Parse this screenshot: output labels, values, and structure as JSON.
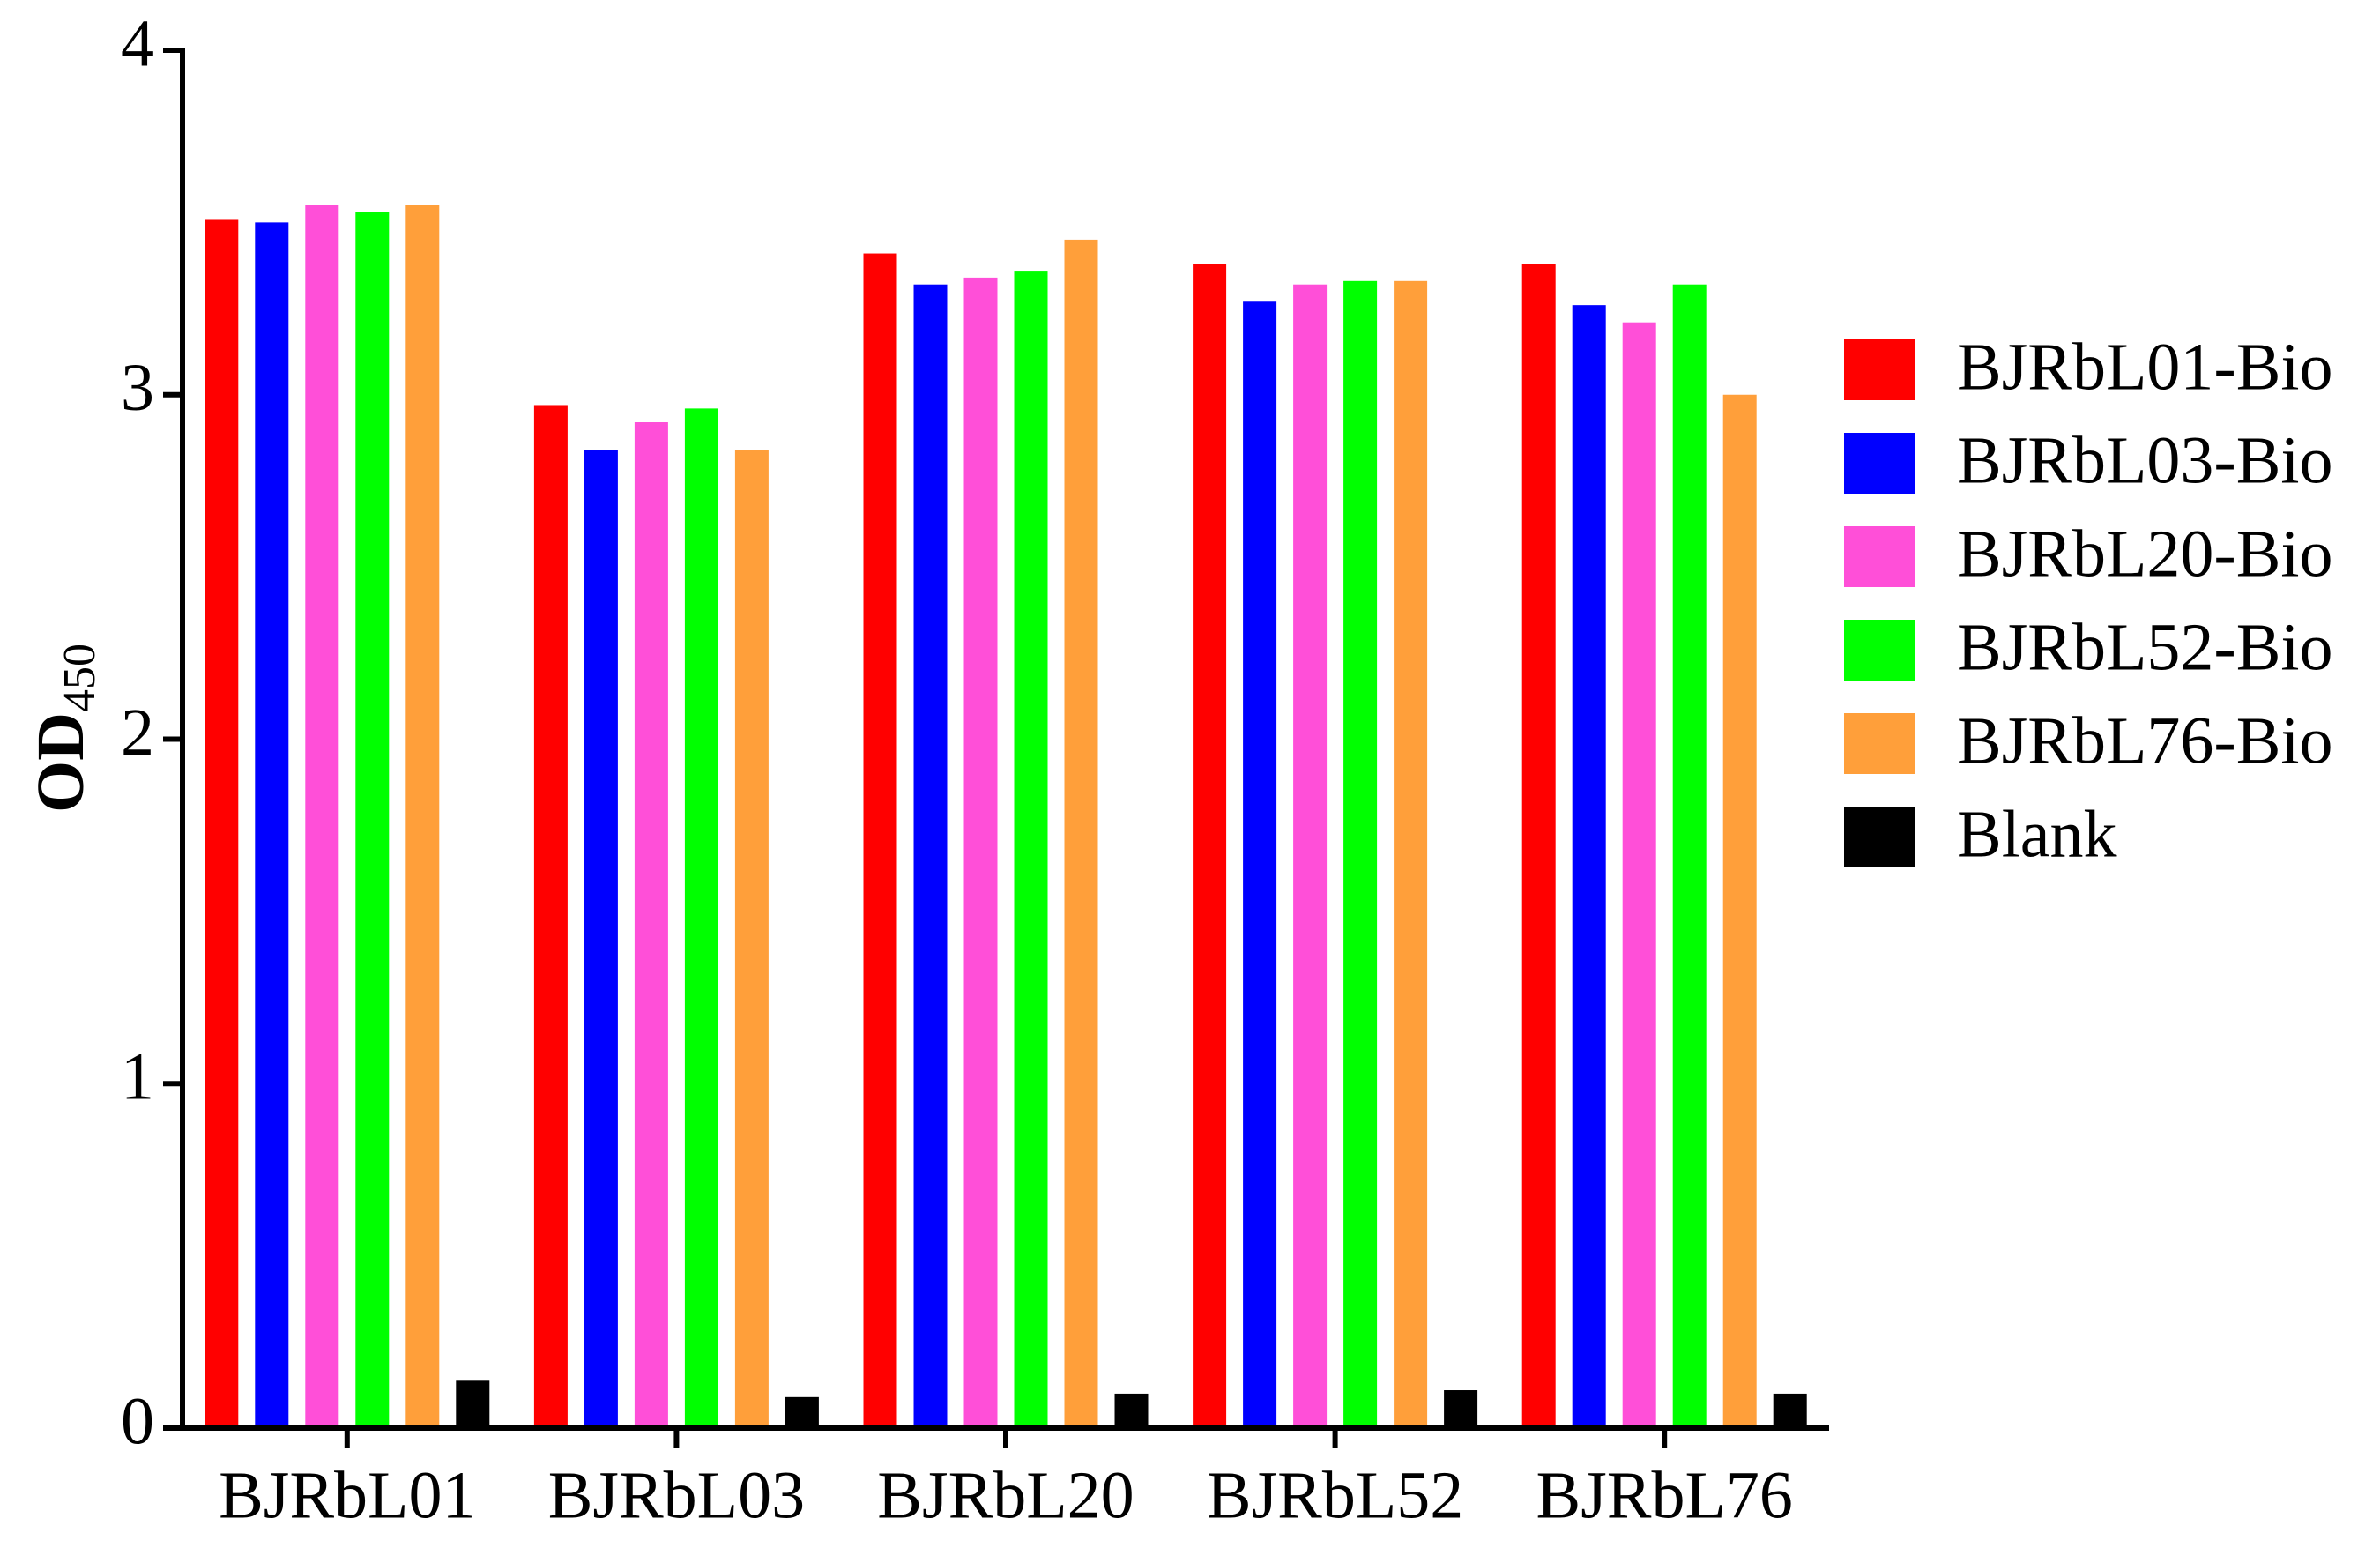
{
  "chart_data": {
    "type": "bar",
    "ylabel": {
      "text": "OD",
      "subscript": "450"
    },
    "categories": [
      "BJRbL01",
      "BJRbL03",
      "BJRbL20",
      "BJRbL52",
      "BJRbL76"
    ],
    "series": [
      {
        "name": "BJRbL01-Bio",
        "color": "#ff0000",
        "values": [
          3.51,
          2.97,
          3.41,
          3.38,
          3.38
        ]
      },
      {
        "name": "BJRbL03-Bio",
        "color": "#0000ff",
        "values": [
          3.5,
          2.84,
          3.32,
          3.27,
          3.26
        ]
      },
      {
        "name": "BJRbL20-Bio",
        "color": "#ff4fd8",
        "values": [
          3.55,
          2.92,
          3.34,
          3.32,
          3.21
        ]
      },
      {
        "name": "BJRbL52-Bio",
        "color": "#00ff00",
        "values": [
          3.53,
          2.96,
          3.36,
          3.33,
          3.32
        ]
      },
      {
        "name": "BJRbL76-Bio",
        "color": "#ff9f3a",
        "values": [
          3.55,
          2.84,
          3.45,
          3.33,
          3.0
        ]
      },
      {
        "name": "Blank",
        "color": "#000000",
        "values": [
          0.14,
          0.09,
          0.1,
          0.11,
          0.1
        ]
      }
    ],
    "ylim": [
      0,
      4
    ],
    "yticks": [
      0,
      1,
      2,
      3,
      4
    ],
    "grid": false,
    "legend": "right"
  }
}
